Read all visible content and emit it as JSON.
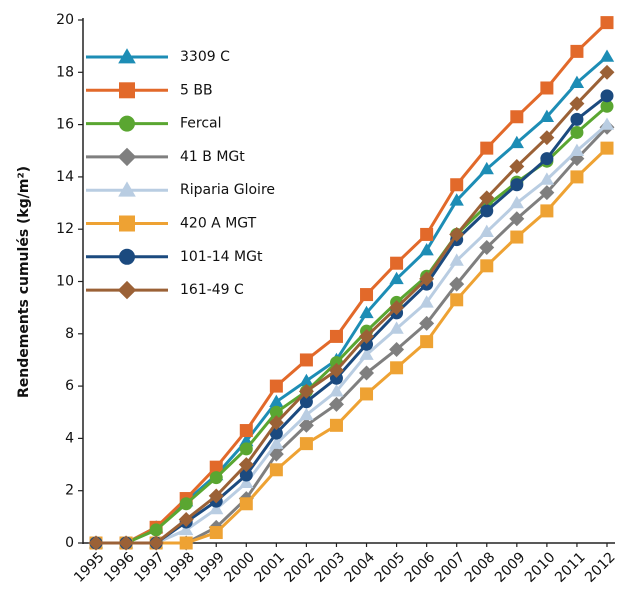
{
  "chart_data": {
    "type": "line",
    "y_label": "Rendements cumulés (kg/m²)",
    "categories": [
      "1995",
      "1996",
      "1997",
      "1998",
      "1999",
      "2000",
      "2001",
      "2002",
      "2003",
      "2004",
      "2005",
      "2006",
      "2007",
      "2008",
      "2009",
      "2010",
      "2011",
      "2012"
    ],
    "ylim": [
      0,
      20
    ],
    "yticks": [
      0,
      2,
      4,
      6,
      8,
      10,
      12,
      14,
      16,
      18,
      20
    ],
    "grid": false,
    "legend": "upper-left",
    "series": [
      {
        "name": "3309 C",
        "color": "#1d8db5",
        "marker": "triangle",
        "values": [
          0,
          0,
          0.6,
          1.6,
          2.6,
          3.9,
          5.4,
          6.2,
          7.0,
          8.8,
          10.1,
          11.2,
          13.1,
          14.3,
          15.3,
          16.3,
          17.6,
          18.6
        ]
      },
      {
        "name": "5 BB",
        "color": "#e2692a",
        "marker": "square",
        "values": [
          0,
          0,
          0.6,
          1.7,
          2.9,
          4.3,
          6.0,
          7.0,
          7.9,
          9.5,
          10.7,
          11.8,
          13.7,
          15.1,
          16.3,
          17.4,
          18.8,
          19.9
        ]
      },
      {
        "name": "Fercal",
        "color": "#5aa631",
        "marker": "circle",
        "values": [
          0,
          0,
          0.5,
          1.5,
          2.5,
          3.6,
          5.0,
          5.8,
          6.9,
          8.1,
          9.2,
          10.2,
          11.8,
          12.9,
          13.8,
          14.6,
          15.7,
          16.7
        ]
      },
      {
        "name": "41 B MGt",
        "color": "#7f7f7f",
        "marker": "diamond",
        "values": [
          0,
          0,
          0,
          0,
          0.6,
          1.7,
          3.4,
          4.5,
          5.3,
          6.5,
          7.4,
          8.4,
          9.9,
          11.3,
          12.4,
          13.4,
          14.7,
          15.9
        ]
      },
      {
        "name": "Riparia Gloire",
        "color": "#b9cde2",
        "marker": "triangle",
        "values": [
          0,
          0,
          0,
          0.5,
          1.3,
          2.3,
          3.8,
          4.9,
          5.8,
          7.2,
          8.2,
          9.2,
          10.8,
          11.9,
          13.0,
          13.9,
          15.0,
          16.0
        ]
      },
      {
        "name": "420 A MGT",
        "color": "#eea233",
        "marker": "square",
        "values": [
          0,
          0,
          0,
          0,
          0.4,
          1.5,
          2.8,
          3.8,
          4.5,
          5.7,
          6.7,
          7.7,
          9.3,
          10.6,
          11.7,
          12.7,
          14.0,
          15.1
        ]
      },
      {
        "name": "101-14 MGt",
        "color": "#1b4a7f",
        "marker": "circle",
        "values": [
          0,
          0,
          0,
          0.8,
          1.6,
          2.6,
          4.2,
          5.4,
          6.3,
          7.6,
          8.8,
          9.9,
          11.6,
          12.7,
          13.7,
          14.7,
          16.2,
          17.1
        ]
      },
      {
        "name": "161-49 C",
        "color": "#9b6136",
        "marker": "diamond",
        "values": [
          0,
          0,
          0,
          0.9,
          1.8,
          3.0,
          4.6,
          5.8,
          6.6,
          7.9,
          9.0,
          10.1,
          11.8,
          13.2,
          14.4,
          15.5,
          16.8,
          18.0
        ]
      }
    ]
  }
}
